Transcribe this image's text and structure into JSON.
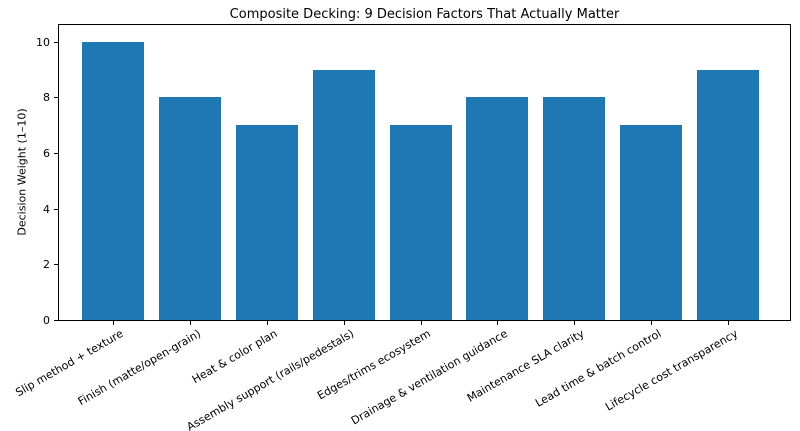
{
  "chart_data": {
    "type": "bar",
    "title": "Composite Decking: 9 Decision Factors That Actually Matter",
    "xlabel": "",
    "ylabel": "Decision Weight (1–10)",
    "categories": [
      "Slip method + texture",
      "Finish (matte/open-grain)",
      "Heat & color plan",
      "Assembly support (rails/pedestals)",
      "Edges/trims ecosystem",
      "Drainage & ventilation guidance",
      "Maintenance SLA clarity",
      "Lead time & batch control",
      "Lifecycle cost transparency"
    ],
    "values": [
      10,
      8,
      7,
      9,
      7,
      8,
      8,
      7,
      9
    ],
    "yticks": [
      0,
      2,
      4,
      6,
      8,
      10
    ],
    "ylim": [
      0,
      10.6
    ],
    "grid": false,
    "legend": "none",
    "bar_color": "#1f77b4",
    "background_color": "#ffffff",
    "x_tick_rotation_deg": 30
  }
}
